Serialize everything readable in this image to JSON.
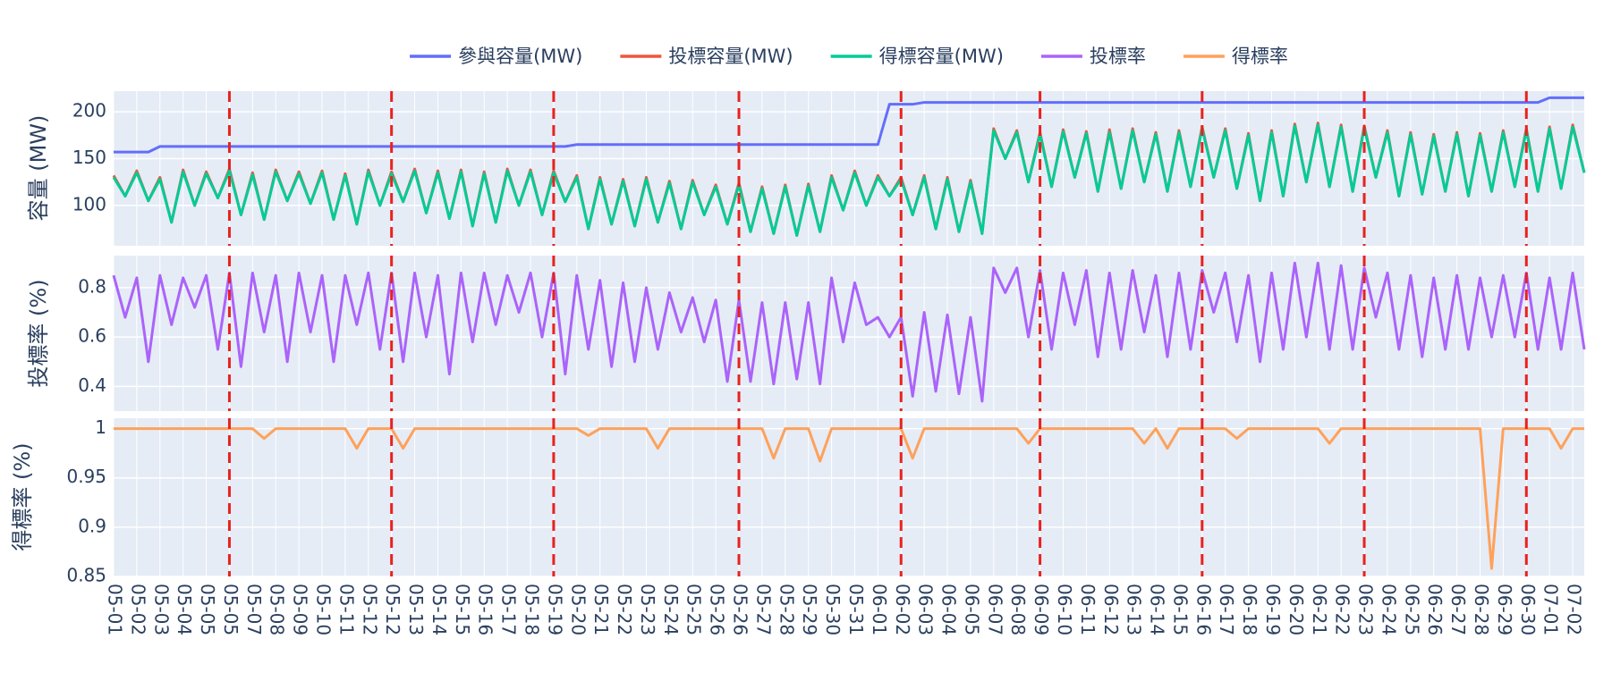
{
  "chart_data": {
    "type": "line",
    "categories": [
      "05-01",
      null,
      "05-02",
      null,
      "05-03",
      null,
      "05-04",
      null,
      "05-05",
      null,
      "05-05",
      null,
      "05-07",
      null,
      "05-08",
      null,
      "05-09",
      null,
      "05-10",
      null,
      "05-11",
      null,
      "05-12",
      null,
      "05-12",
      null,
      "05-13",
      null,
      "05-14",
      null,
      "05-15",
      null,
      "05-16",
      null,
      "05-17",
      null,
      "05-18",
      null,
      "05-19",
      null,
      "05-20",
      null,
      "05-21",
      null,
      "05-22",
      null,
      "05-23",
      null,
      "05-24",
      null,
      "05-25",
      null,
      "05-26",
      null,
      "05-26",
      null,
      "05-27",
      null,
      "05-28",
      null,
      "05-29",
      null,
      "05-30",
      null,
      "05-31",
      null,
      "06-01",
      null,
      "06-02",
      null,
      "06-03",
      null,
      "06-04",
      null,
      "06-05",
      null,
      "06-07",
      null,
      "06-08",
      null,
      "06-09",
      null,
      "06-10",
      null,
      "06-11",
      null,
      "06-12",
      null,
      "06-13",
      null,
      "06-14",
      null,
      "06-15",
      null,
      "06-16",
      null,
      "06-17",
      null,
      "06-18",
      null,
      "06-19",
      null,
      "06-20",
      null,
      "06-21",
      null,
      "06-22",
      null,
      "06-23",
      null,
      "06-24",
      null,
      "06-25",
      null,
      "06-26",
      null,
      "06-27",
      null,
      "06-28",
      null,
      "06-29",
      null,
      "06-30",
      null,
      "07-01",
      null,
      "07-02",
      null
    ],
    "ylabel": "容量 (MW)",
    "y2label": "投標率 (%)",
    "y3label": "得標率 (%)",
    "ylim": [
      57,
      222
    ],
    "yticks": [
      100,
      150,
      200
    ],
    "y2lim": [
      0.3,
      0.93
    ],
    "y2ticks": [
      0.4,
      0.6,
      0.8
    ],
    "y3lim": [
      0.85,
      1.0105
    ],
    "y3ticks": [
      0.85,
      0.9,
      0.95,
      1
    ],
    "grid": true,
    "legend": "top",
    "vlines": [
      10,
      24,
      38,
      54,
      68,
      80,
      94,
      108,
      122
    ],
    "vline_color": "#e8221e",
    "series": [
      {
        "name": "參與容量(MW)",
        "color": "#636efa",
        "axis": "y",
        "values": [
          157,
          157,
          157,
          157,
          163,
          163,
          163,
          163,
          163,
          163,
          163,
          163,
          163,
          163,
          163,
          163,
          163,
          163,
          163,
          163,
          163,
          163,
          163,
          163,
          163,
          163,
          163,
          163,
          163,
          163,
          163,
          163,
          163,
          163,
          163,
          163,
          163,
          163,
          163,
          163,
          165,
          165,
          165,
          165,
          165,
          165,
          165,
          165,
          165,
          165,
          165,
          165,
          165,
          165,
          165,
          165,
          165,
          165,
          165,
          165,
          165,
          165,
          165,
          165,
          165,
          165,
          165,
          208,
          208,
          208,
          210,
          210,
          210,
          210,
          210,
          210,
          210,
          210,
          210,
          210,
          210,
          210,
          210,
          210,
          210,
          210,
          210,
          210,
          210,
          210,
          210,
          210,
          210,
          210,
          210,
          210,
          210,
          210,
          210,
          210,
          210,
          210,
          210,
          210,
          210,
          210,
          210,
          210,
          210,
          210,
          210,
          210,
          210,
          210,
          210,
          210,
          210,
          210,
          210,
          210,
          210,
          210,
          210,
          210,
          215,
          215,
          215,
          215
        ]
      },
      {
        "name": "投標容量(MW)",
        "color": "#ef553b",
        "axis": "y",
        "values": [
          132,
          110,
          137,
          105,
          130,
          82,
          138,
          100,
          136,
          108,
          139,
          90,
          135,
          85,
          138,
          105,
          136,
          102,
          137,
          85,
          134,
          80,
          138,
          100,
          136,
          104,
          139,
          92,
          137,
          86,
          138,
          78,
          136,
          82,
          139,
          100,
          138,
          90,
          137,
          104,
          132,
          75,
          130,
          80,
          128,
          78,
          130,
          82,
          126,
          75,
          127,
          90,
          122,
          80,
          124,
          72,
          120,
          70,
          122,
          68,
          123,
          72,
          132,
          95,
          137,
          100,
          132,
          110,
          130,
          90,
          132,
          75,
          130,
          72,
          127,
          70,
          182,
          150,
          180,
          125,
          178,
          120,
          181,
          130,
          179,
          115,
          181,
          118,
          182,
          125,
          178,
          115,
          180,
          120,
          184,
          130,
          182,
          118,
          177,
          105,
          180,
          110,
          187,
          125,
          188,
          120,
          186,
          115,
          185,
          130,
          180,
          110,
          178,
          112,
          176,
          115,
          178,
          110,
          177,
          115,
          180,
          120,
          182,
          115,
          184,
          118,
          186,
          135
        ]
      },
      {
        "name": "得標容量(MW)",
        "color": "#00cc96",
        "axis": "y",
        "values": [
          130,
          110,
          135,
          105,
          128,
          82,
          136,
          100,
          134,
          108,
          137,
          90,
          133,
          85,
          136,
          105,
          134,
          102,
          135,
          85,
          132,
          80,
          136,
          100,
          134,
          104,
          137,
          92,
          135,
          86,
          136,
          78,
          134,
          82,
          137,
          100,
          136,
          90,
          135,
          104,
          130,
          75,
          128,
          80,
          126,
          78,
          128,
          82,
          124,
          75,
          125,
          90,
          120,
          80,
          122,
          72,
          118,
          70,
          120,
          68,
          121,
          72,
          130,
          95,
          135,
          100,
          130,
          110,
          128,
          90,
          130,
          75,
          128,
          72,
          125,
          70,
          180,
          150,
          178,
          125,
          176,
          120,
          179,
          130,
          177,
          115,
          178,
          118,
          180,
          125,
          176,
          115,
          178,
          120,
          182,
          130,
          180,
          118,
          175,
          105,
          178,
          110,
          185,
          125,
          186,
          120,
          184,
          115,
          183,
          130,
          178,
          110,
          176,
          112,
          174,
          115,
          176,
          110,
          175,
          115,
          178,
          120,
          180,
          115,
          182,
          118,
          184,
          135
        ]
      },
      {
        "name": "投標率",
        "color": "#ab63fa",
        "axis": "y2",
        "values": [
          0.85,
          0.68,
          0.84,
          0.5,
          0.85,
          0.65,
          0.84,
          0.72,
          0.85,
          0.55,
          0.86,
          0.48,
          0.86,
          0.62,
          0.85,
          0.5,
          0.86,
          0.62,
          0.85,
          0.5,
          0.85,
          0.65,
          0.86,
          0.55,
          0.86,
          0.5,
          0.86,
          0.6,
          0.85,
          0.45,
          0.86,
          0.58,
          0.86,
          0.65,
          0.85,
          0.7,
          0.86,
          0.6,
          0.86,
          0.45,
          0.85,
          0.55,
          0.83,
          0.48,
          0.82,
          0.5,
          0.8,
          0.55,
          0.78,
          0.62,
          0.76,
          0.58,
          0.75,
          0.42,
          0.75,
          0.42,
          0.74,
          0.41,
          0.74,
          0.43,
          0.74,
          0.41,
          0.84,
          0.58,
          0.82,
          0.65,
          0.68,
          0.6,
          0.68,
          0.36,
          0.7,
          0.38,
          0.69,
          0.37,
          0.68,
          0.34,
          0.88,
          0.78,
          0.88,
          0.6,
          0.87,
          0.55,
          0.86,
          0.65,
          0.87,
          0.52,
          0.86,
          0.55,
          0.87,
          0.62,
          0.85,
          0.52,
          0.86,
          0.55,
          0.87,
          0.7,
          0.86,
          0.58,
          0.85,
          0.5,
          0.86,
          0.55,
          0.9,
          0.6,
          0.9,
          0.55,
          0.89,
          0.55,
          0.88,
          0.68,
          0.86,
          0.55,
          0.85,
          0.52,
          0.84,
          0.55,
          0.85,
          0.55,
          0.84,
          0.6,
          0.85,
          0.6,
          0.86,
          0.55,
          0.84,
          0.55,
          0.86,
          0.55
        ]
      },
      {
        "name": "得標率",
        "color": "#ffa15a",
        "axis": "y3",
        "values": [
          1,
          1,
          1,
          1,
          1,
          1,
          1,
          1,
          1,
          1,
          1,
          1,
          1,
          0.99,
          1,
          1,
          1,
          1,
          1,
          1,
          1,
          0.98,
          1,
          1,
          1,
          0.98,
          1,
          1,
          1,
          1,
          1,
          1,
          1,
          1,
          1,
          1,
          1,
          1,
          1,
          1,
          1,
          0.993,
          1,
          1,
          1,
          1,
          1,
          0.98,
          1,
          1,
          1,
          1,
          1,
          1,
          1,
          1,
          1,
          0.97,
          1,
          1,
          1,
          0.967,
          1,
          1,
          1,
          1,
          1,
          1,
          1,
          0.97,
          1,
          1,
          1,
          1,
          1,
          1,
          1,
          1,
          1,
          0.985,
          1,
          1,
          1,
          1,
          1,
          1,
          1,
          1,
          1,
          0.985,
          1,
          0.98,
          1,
          1,
          1,
          1,
          1,
          0.99,
          1,
          1,
          1,
          1,
          1,
          1,
          1,
          0.985,
          1,
          1,
          1,
          1,
          1,
          1,
          1,
          1,
          1,
          1,
          1,
          1,
          1,
          0.858,
          1,
          1,
          1,
          1,
          1,
          0.98,
          1,
          1
        ]
      }
    ]
  }
}
